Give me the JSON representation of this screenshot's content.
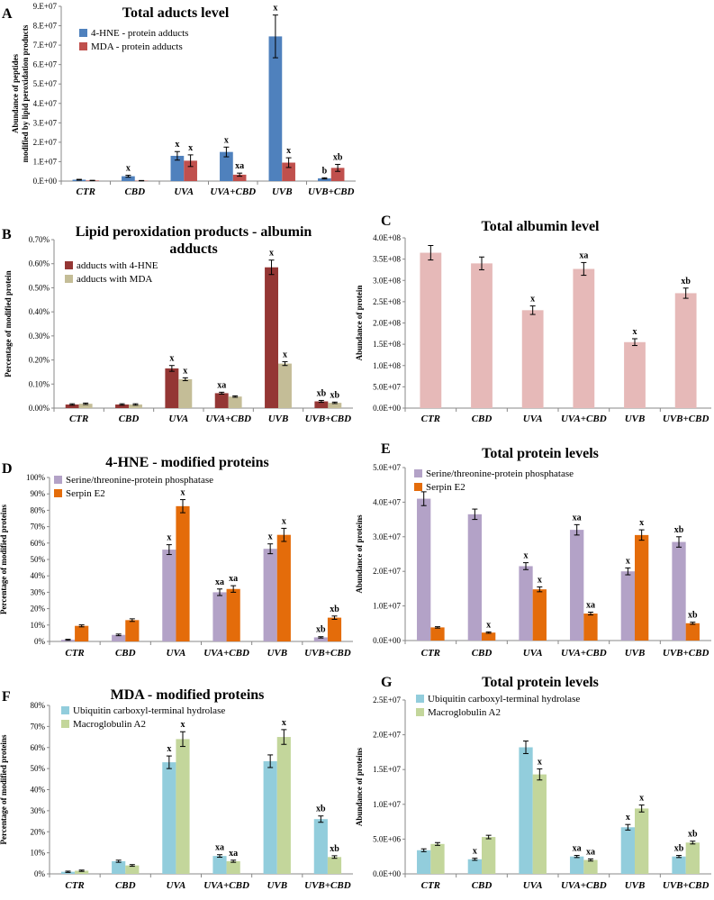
{
  "chart_data": [
    {
      "panel": "A",
      "type": "bar",
      "title": "Total aducts level",
      "ylabel": "Abundance of peptides modified by lipid peroxidation products",
      "ylim": [
        0,
        90000000
      ],
      "yticks": [
        "0.E+00",
        "1.E+07",
        "2.E+07",
        "3.E+07",
        "4.E+07",
        "5.E+07",
        "6.E+07",
        "7.E+07",
        "8.E+07",
        "9.E+07"
      ],
      "categories": [
        "CTR",
        "CBD",
        "UVA",
        "UVA+CBD",
        "UVB",
        "UVB+CBD"
      ],
      "legend_pos": "top-left",
      "series": [
        {
          "name": "4-HNE - protein adducts",
          "color": "#4f81bd",
          "values": [
            700000,
            2500000,
            13000000,
            15000000,
            74500000,
            1400000
          ],
          "errors": [
            200000,
            500000,
            2200000,
            2500000,
            11000000,
            300000
          ],
          "labels": [
            "",
            "x",
            "x",
            "x",
            "x",
            "b"
          ]
        },
        {
          "name": "MDA - protein adducts",
          "color": "#c0504d",
          "values": [
            300000,
            200000,
            10500000,
            3300000,
            9500000,
            6800000
          ],
          "errors": [
            100000,
            100000,
            3000000,
            800000,
            2500000,
            1800000
          ],
          "labels": [
            "",
            "",
            "x",
            "xa",
            "x",
            "xb"
          ]
        }
      ]
    },
    {
      "panel": "B",
      "type": "bar",
      "title": "Lipid peroxidation products - albumin adducts",
      "title_lines": [
        "Lipid peroxidation products - albumin",
        "adducts"
      ],
      "ylabel": "Percentage of modified protein",
      "ylim": [
        0,
        0.7
      ],
      "yticks": [
        "0.00%",
        "0.10%",
        "0.20%",
        "0.30%",
        "0.40%",
        "0.50%",
        "0.60%",
        "0.70%"
      ],
      "categories": [
        "CTR",
        "CBD",
        "UVA",
        "UVA+CBD",
        "UVB",
        "UVB+CBD"
      ],
      "legend_pos": "top-left",
      "series": [
        {
          "name": "adducts with 4-HNE",
          "color": "#943634",
          "values": [
            0.015,
            0.015,
            0.165,
            0.062,
            0.585,
            0.028
          ],
          "errors": [
            0.003,
            0.003,
            0.012,
            0.004,
            0.03,
            0.004
          ],
          "labels": [
            "",
            "",
            "x",
            "xa",
            "x",
            "xb"
          ]
        },
        {
          "name": "adducts with MDA",
          "color": "#c4bd97",
          "values": [
            0.018,
            0.015,
            0.12,
            0.048,
            0.185,
            0.022
          ],
          "errors": [
            0.003,
            0.003,
            0.006,
            0.003,
            0.008,
            0.003
          ],
          "labels": [
            "",
            "",
            "x",
            "",
            "x",
            "xb"
          ]
        }
      ]
    },
    {
      "panel": "C",
      "type": "bar",
      "title": "Total albumin level",
      "ylabel": "Abundance of protein",
      "ylim": [
        0,
        400000000
      ],
      "yticks": [
        "0.0E+00",
        "5.0E+07",
        "1.0E+08",
        "1.5E+08",
        "2.0E+08",
        "2.5E+08",
        "3.0E+08",
        "3.5E+08",
        "4.0E+08"
      ],
      "categories": [
        "CTR",
        "CBD",
        "UVA",
        "UVA+CBD",
        "UVB",
        "UVB+CBD"
      ],
      "legend_pos": "none",
      "series": [
        {
          "name": "albumin",
          "color": "#e6b9b8",
          "values": [
            365000000,
            340000000,
            230000000,
            327000000,
            155000000,
            270000000
          ],
          "errors": [
            17000000,
            15000000,
            10000000,
            15000000,
            8000000,
            12000000
          ],
          "labels": [
            "",
            "",
            "x",
            "xa",
            "x",
            "xb"
          ]
        }
      ]
    },
    {
      "panel": "D",
      "type": "bar",
      "title": "4-HNE - modified proteins",
      "ylabel": "Percentage of modified proteins",
      "ylim": [
        0,
        100
      ],
      "yticks": [
        "0%",
        "10%",
        "20%",
        "30%",
        "40%",
        "50%",
        "60%",
        "70%",
        "80%",
        "90%",
        "100%"
      ],
      "categories": [
        "CTR",
        "CBD",
        "UVA",
        "UVA+CBD",
        "UVB",
        "UVB+CBD"
      ],
      "legend_pos": "top-left",
      "series": [
        {
          "name": "Serine/threonine-protein phosphatase",
          "color": "#b3a2c7",
          "values": [
            1,
            4,
            56,
            30,
            56.5,
            2.5
          ],
          "errors": [
            0.3,
            0.5,
            3,
            2,
            3,
            0.4
          ],
          "labels": [
            "",
            "",
            "x",
            "xa",
            "x",
            "xb"
          ]
        },
        {
          "name": "Serpin E2",
          "color": "#e46c0a",
          "values": [
            9.5,
            13,
            82.5,
            32,
            65,
            14.5
          ],
          "errors": [
            0.6,
            0.8,
            4,
            2,
            4,
            1
          ],
          "labels": [
            "",
            "",
            "x",
            "xa",
            "x",
            "xb"
          ]
        }
      ]
    },
    {
      "panel": "E",
      "type": "bar",
      "title": "Total protein levels",
      "ylabel": "Abundance of proteins",
      "ylim": [
        0,
        50000000
      ],
      "yticks": [
        "0.0E+00",
        "1.0E+07",
        "2.0E+07",
        "3.0E+07",
        "4.0E+07",
        "5.0E+07"
      ],
      "categories": [
        "CTR",
        "CBD",
        "UVA",
        "UVA+CBD",
        "UVB",
        "UVB+CBD"
      ],
      "legend_pos": "top-left",
      "series": [
        {
          "name": "Serine/threonine-protein phosphatase",
          "color": "#b3a2c7",
          "values": [
            41000000,
            36500000,
            21500000,
            32000000,
            20000000,
            28500000
          ],
          "errors": [
            2000000,
            1500000,
            1000000,
            1500000,
            1000000,
            1500000
          ],
          "labels": [
            "",
            "",
            "x",
            "xa",
            "x",
            "xb"
          ]
        },
        {
          "name": "Serpin E2",
          "color": "#e46c0a",
          "values": [
            3800000,
            2300000,
            14800000,
            7800000,
            30500000,
            5000000
          ],
          "errors": [
            200000,
            200000,
            700000,
            400000,
            1500000,
            300000
          ],
          "labels": [
            "",
            "x",
            "x",
            "xa",
            "x",
            "xb"
          ]
        }
      ]
    },
    {
      "panel": "F",
      "type": "bar",
      "title": "MDA - modified proteins",
      "ylabel": "Percentage of modified proteins",
      "ylim": [
        0,
        80
      ],
      "yticks": [
        "0%",
        "10%",
        "20%",
        "30%",
        "40%",
        "50%",
        "60%",
        "70%",
        "80%"
      ],
      "categories": [
        "CTR",
        "CBD",
        "UVA",
        "UVA+CBD",
        "UVB",
        "UVB+CBD"
      ],
      "legend_pos": "top-left",
      "series": [
        {
          "name": "Ubiquitin carboxyl-terminal hydrolase",
          "color": "#92cddc",
          "values": [
            1,
            6,
            53,
            8.5,
            53.5,
            26
          ],
          "errors": [
            0.3,
            0.5,
            3,
            0.6,
            3,
            1.5
          ],
          "labels": [
            "",
            "",
            "x",
            "xa",
            "",
            "xb"
          ]
        },
        {
          "name": "Macroglobulin A2",
          "color": "#c3d69b",
          "values": [
            1.5,
            4,
            64,
            6,
            65,
            8
          ],
          "errors": [
            0.3,
            0.4,
            3.5,
            0.5,
            3.5,
            0.6
          ],
          "labels": [
            "",
            "",
            "x",
            "xa",
            "x",
            "xb"
          ]
        }
      ]
    },
    {
      "panel": "G",
      "type": "bar",
      "title": "Total protein levels",
      "ylabel": "Abundance of proteins",
      "ylim": [
        0,
        25000000
      ],
      "yticks": [
        "0.0E+00",
        "5.0E+06",
        "1.0E+07",
        "1.5E+07",
        "2.0E+07",
        "2.5E+07"
      ],
      "categories": [
        "CTR",
        "CBD",
        "UVA",
        "UVA+CBD",
        "UVB",
        "UVB+CBD"
      ],
      "legend_pos": "top-left",
      "series": [
        {
          "name": "Ubiquitin carboxyl-terminal hydrolase",
          "color": "#92cddc",
          "values": [
            3400000,
            2100000,
            18200000,
            2500000,
            6700000,
            2500000
          ],
          "errors": [
            200000,
            150000,
            900000,
            150000,
            400000,
            150000
          ],
          "labels": [
            "",
            "x",
            "",
            "xa",
            "x",
            "xb"
          ]
        },
        {
          "name": "Macroglobulin A2",
          "color": "#c3d69b",
          "values": [
            4300000,
            5300000,
            14300000,
            2000000,
            9400000,
            4500000
          ],
          "errors": [
            200000,
            250000,
            800000,
            150000,
            500000,
            200000
          ],
          "labels": [
            "",
            "",
            "x",
            "xa",
            "x",
            "xb"
          ]
        }
      ]
    }
  ]
}
